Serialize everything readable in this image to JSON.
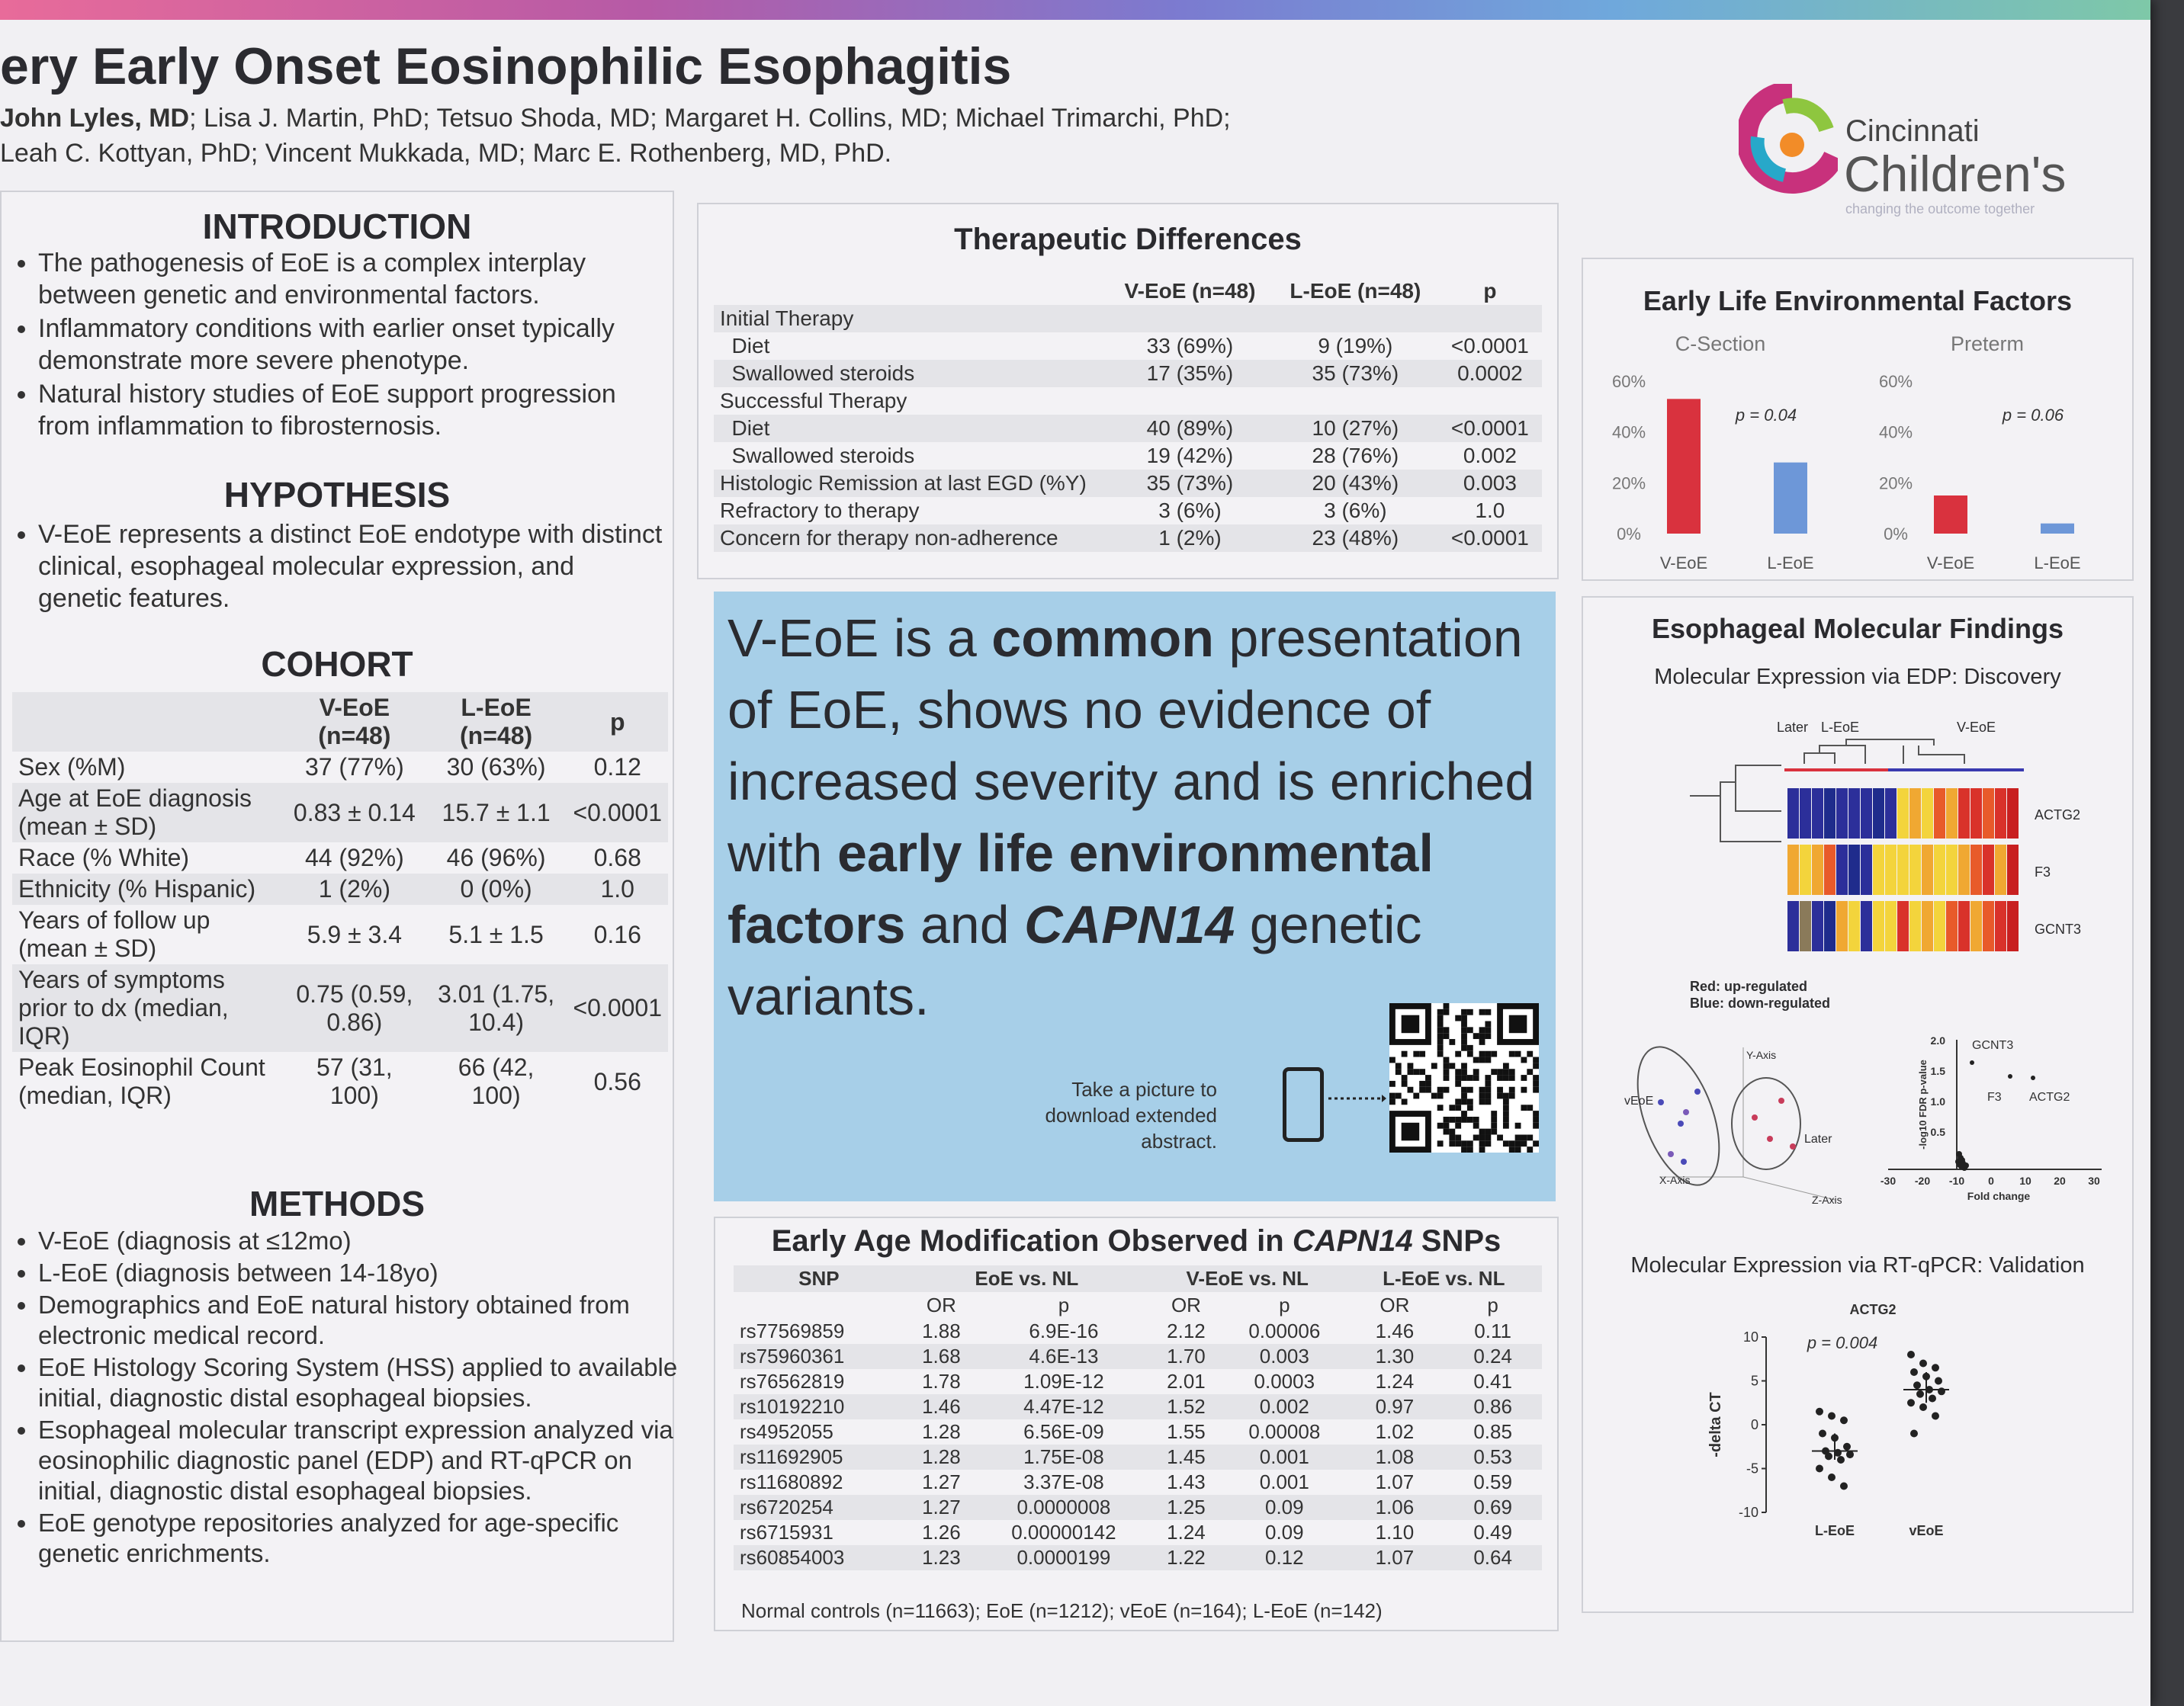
{
  "title": "ery Early Onset Eosinophilic Esophagitis",
  "authors": {
    "lead": "John Lyles, MD",
    "line1_rest": "; Lisa J. Martin, PhD;  Tetsuo Shoda, MD; Margaret H. Collins, MD; Michael Trimarchi, PhD;",
    "line2": "Leah C. Kottyan, PhD; Vincent Mukkada, MD; Marc E. Rothenberg, MD, PhD."
  },
  "logo": {
    "line1": "Cincinnati",
    "line2": "Children's",
    "tagline": "changing the outcome together"
  },
  "introduction": {
    "heading": "INTRODUCTION",
    "bullets": [
      "The pathogenesis of EoE is a complex interplay between genetic and environmental factors.",
      "Inflammatory conditions with earlier onset typically demonstrate more severe phenotype.",
      "Natural history studies of EoE support progression from inflammation to fibrosternosis."
    ]
  },
  "hypothesis": {
    "heading": "HYPOTHESIS",
    "bullets": [
      "V-EoE represents a distinct EoE endotype with distinct clinical, esophageal molecular expression, and genetic features."
    ]
  },
  "cohort": {
    "heading": "COHORT",
    "col1": "V-EoE",
    "col1b": "(n=48)",
    "col2": "L-EoE",
    "col2b": "(n=48)",
    "col3": "p",
    "rows": [
      [
        "Sex (%M)",
        "37 (77%)",
        "30 (63%)",
        "0.12"
      ],
      [
        "Age at EoE diagnosis (mean ± SD)",
        "0.83 ± 0.14",
        "15.7 ± 1.1",
        "<0.0001"
      ],
      [
        "Race (% White)",
        "44 (92%)",
        "46 (96%)",
        "0.68"
      ],
      [
        "Ethnicity (% Hispanic)",
        "1 (2%)",
        "0 (0%)",
        "1.0"
      ],
      [
        "Years of follow up (mean ± SD)",
        "5.9 ± 3.4",
        "5.1 ± 1.5",
        "0.16"
      ],
      [
        "Years of symptoms prior to dx (median, IQR)",
        "0.75 (0.59, 0.86)",
        "3.01 (1.75, 10.4)",
        "<0.0001"
      ],
      [
        "Peak Eosinophil Count (median, IQR)",
        "57 (31, 100)",
        "66 (42, 100)",
        "0.56"
      ]
    ]
  },
  "methods": {
    "heading": "METHODS",
    "bullets": [
      "V-EoE (diagnosis at ≤12mo)",
      "L-EoE (diagnosis between 14-18yo)",
      "Demographics and EoE natural history obtained from electronic medical record.",
      "EoE Histology Scoring System (HSS) applied to available initial, diagnostic distal esophageal biopsies.",
      "Esophageal molecular transcript expression analyzed via eosinophilic diagnostic panel (EDP) and RT-qPCR on initial, diagnostic distal esophageal biopsies.",
      "EoE genotype repositories analyzed for age-specific genetic enrichments."
    ]
  },
  "therapeutic": {
    "heading": "Therapeutic Differences",
    "col1": "V-EoE (n=48)",
    "col2": "L-EoE (n=48)",
    "col3": "p",
    "rows": [
      [
        "Initial Therapy",
        "",
        "",
        ""
      ],
      [
        "  Diet",
        "33 (69%)",
        "9 (19%)",
        "<0.0001"
      ],
      [
        "  Swallowed steroids",
        "17 (35%)",
        "35 (73%)",
        "0.0002"
      ],
      [
        "Successful Therapy",
        "",
        "",
        ""
      ],
      [
        "  Diet",
        "40 (89%)",
        "10 (27%)",
        "<0.0001"
      ],
      [
        "  Swallowed steroids",
        "19 (42%)",
        "28 (76%)",
        "0.002"
      ],
      [
        "Histologic Remission at last EGD (%Y)",
        "35 (73%)",
        "20 (43%)",
        "0.003"
      ],
      [
        "Refractory to therapy",
        "3 (6%)",
        "3 (6%)",
        "1.0"
      ],
      [
        "Concern for therapy non-adherence",
        "1 (2%)",
        "23 (48%)",
        "<0.0001"
      ]
    ]
  },
  "callout": {
    "p1": "V-EoE is a ",
    "b1": "common",
    "p2": " presentation of EoE, shows no evidence of increased severity and is enriched with ",
    "b2": "early life environmental factors",
    "p3": " and ",
    "b3": "CAPN14",
    "p4": " genetic variants.",
    "qr_caption": "Take a picture to download extended abstract."
  },
  "snps": {
    "heading_a": "Early Age Modification Observed in ",
    "heading_b": "CAPN14",
    "heading_c": " SNPs",
    "group1": "EoE vs. NL",
    "group2": "V-EoE vs. NL",
    "group3": "L-EoE vs. NL",
    "snp_label": "SNP",
    "or": "OR",
    "p": "p",
    "rows": [
      [
        "rs77569859",
        "1.88",
        "6.9E-16",
        "2.12",
        "0.00006",
        "1.46",
        "0.11"
      ],
      [
        "rs75960361",
        "1.68",
        "4.6E-13",
        "1.70",
        "0.003",
        "1.30",
        "0.24"
      ],
      [
        "rs76562819",
        "1.78",
        "1.09E-12",
        "2.01",
        "0.0003",
        "1.24",
        "0.41"
      ],
      [
        "rs10192210",
        "1.46",
        "4.47E-12",
        "1.52",
        "0.002",
        "0.97",
        "0.86"
      ],
      [
        "rs4952055",
        "1.28",
        "6.56E-09",
        "1.55",
        "0.00008",
        "1.02",
        "0.85"
      ],
      [
        "rs11692905",
        "1.28",
        "1.75E-08",
        "1.45",
        "0.001",
        "1.08",
        "0.53"
      ],
      [
        "rs11680892",
        "1.27",
        "3.37E-08",
        "1.43",
        "0.001",
        "1.07",
        "0.59"
      ],
      [
        "rs6720254",
        "1.27",
        "0.0000008",
        "1.25",
        "0.09",
        "1.06",
        "0.69"
      ],
      [
        "rs6715931",
        "1.26",
        "0.00000142",
        "1.24",
        "0.09",
        "1.10",
        "0.49"
      ],
      [
        "rs60854003",
        "1.23",
        "0.0000199",
        "1.22",
        "0.12",
        "1.07",
        "0.64"
      ]
    ],
    "footnote": "Normal controls (n=11663); EoE (n=1212); vEoE (n=164); L-EoE (n=142)"
  },
  "env": {
    "heading": "Early Life Environmental Factors",
    "chart_data": [
      {
        "type": "bar",
        "title": "C-Section",
        "categories": [
          "V-EoE",
          "L-EoE"
        ],
        "values": [
          53,
          28
        ],
        "ylim": [
          0,
          60
        ],
        "yticks": [
          "60%",
          "40%",
          "20%",
          "0%"
        ],
        "annotation": "p = 0.04"
      },
      {
        "type": "bar",
        "title": "Preterm",
        "categories": [
          "V-EoE",
          "L-EoE"
        ],
        "values": [
          15,
          4
        ],
        "ylim": [
          0,
          60
        ],
        "yticks": [
          "60%",
          "40%",
          "20%",
          "0%"
        ],
        "annotation": "p = 0.06"
      }
    ],
    "colors": {
      "veoe": "#d9323e",
      "leoe": "#6d97d8"
    }
  },
  "molecular": {
    "heading": "Esophageal Molecular Findings",
    "sub1": "Molecular Expression via EDP: Discovery",
    "later": "Later",
    "leoe": "L-EoE",
    "veoe": "V-EoE",
    "genes": [
      "ACTG2",
      "F3",
      "GCNT3"
    ],
    "legend_red": "Red: up-regulated",
    "legend_blue": "Blue: down-regulated",
    "pca": {
      "veoe": "vEoE",
      "later": "Later",
      "xaxis": "X-Axis",
      "yaxis": "Y-Axis",
      "zaxis": "Z-Axis"
    },
    "volcano": {
      "ylabel": "-log10 FDR p-value",
      "xlabel": "Fold change",
      "xticks": [
        "-30",
        "-20",
        "-10",
        "0",
        "10",
        "20",
        "30"
      ],
      "yticks": [
        "2.0",
        "1.5",
        "1.0",
        "0.5"
      ],
      "labels": [
        "GCNT3",
        "F3",
        "ACTG2"
      ]
    },
    "sub2": "Molecular Expression via RT-qPCR: Validation",
    "rtqpcr": {
      "chart_data": {
        "type": "scatter",
        "title": "ACTG2",
        "ylabel": "-delta CT",
        "categories": [
          "L-EoE",
          "vEoE"
        ],
        "ylim": [
          -10,
          10
        ],
        "yticks": [
          "10",
          "5",
          "0",
          "-5",
          "-10"
        ],
        "annotation": "p = 0.004",
        "series": [
          {
            "name": "L-EoE",
            "values": [
              1.5,
              1.0,
              0.5,
              -1,
              -1.5,
              -2.5,
              -3,
              -3.2,
              -3.4,
              -3.6,
              -4,
              -5,
              -6,
              -7
            ]
          },
          {
            "name": "vEoE",
            "values": [
              8,
              7,
              6.5,
              6,
              5.5,
              5,
              4.5,
              4,
              3.8,
              3.5,
              3,
              2.5,
              2,
              1,
              -1
            ]
          }
        ]
      }
    }
  }
}
